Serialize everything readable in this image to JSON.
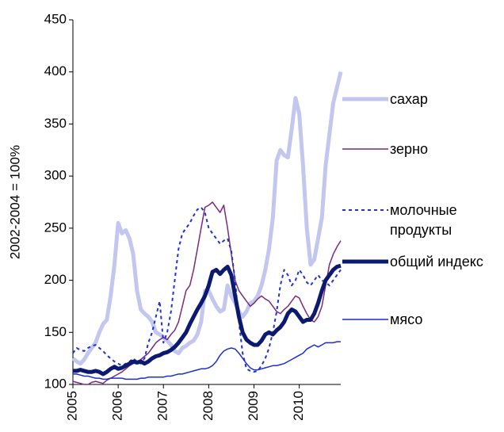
{
  "chart_data": {
    "type": "line",
    "y_label": "2002-2004 = 100%",
    "x": [
      2005,
      2005.083,
      2005.167,
      2005.25,
      2005.333,
      2005.417,
      2005.5,
      2005.583,
      2005.667,
      2005.75,
      2005.833,
      2005.917,
      2006,
      2006.083,
      2006.167,
      2006.25,
      2006.333,
      2006.417,
      2006.5,
      2006.583,
      2006.667,
      2006.75,
      2006.833,
      2006.917,
      2007,
      2007.083,
      2007.167,
      2007.25,
      2007.333,
      2007.417,
      2007.5,
      2007.583,
      2007.667,
      2007.75,
      2007.833,
      2007.917,
      2008,
      2008.083,
      2008.167,
      2008.25,
      2008.333,
      2008.417,
      2008.5,
      2008.583,
      2008.667,
      2008.75,
      2008.833,
      2008.917,
      2009,
      2009.083,
      2009.167,
      2009.25,
      2009.333,
      2009.417,
      2009.5,
      2009.583,
      2009.667,
      2009.75,
      2009.833,
      2009.917,
      2010,
      2010.083,
      2010.167,
      2010.25,
      2010.333,
      2010.417,
      2010.5,
      2010.583,
      2010.667,
      2010.75,
      2010.833,
      2010.917
    ],
    "series": [
      {
        "name": "сахар",
        "color": "#c3c6ee",
        "values": [
          125,
          122,
          120,
          124,
          130,
          135,
          140,
          150,
          158,
          162,
          185,
          215,
          255,
          245,
          248,
          240,
          225,
          190,
          172,
          168,
          165,
          160,
          150,
          148,
          145,
          142,
          138,
          132,
          130,
          135,
          137,
          140,
          142,
          148,
          160,
          190,
          190,
          182,
          175,
          170,
          172,
          195,
          185,
          178,
          170,
          165,
          170,
          178,
          180,
          185,
          195,
          210,
          230,
          260,
          315,
          325,
          320,
          318,
          345,
          375,
          360,
          310,
          250,
          215,
          220,
          240,
          260,
          310,
          340,
          370,
          385,
          400
        ]
      },
      {
        "name": "зерно",
        "color": "#7b2a7d",
        "values": [
          103,
          102,
          101,
          100,
          100,
          102,
          103,
          102,
          101,
          104,
          106,
          108,
          110,
          112,
          115,
          118,
          120,
          122,
          124,
          127,
          130,
          135,
          140,
          143,
          145,
          143,
          148,
          152,
          160,
          175,
          190,
          195,
          210,
          230,
          250,
          270,
          272,
          275,
          270,
          265,
          272,
          250,
          225,
          200,
          190,
          185,
          180,
          175,
          178,
          182,
          185,
          182,
          180,
          175,
          170,
          168,
          172,
          175,
          180,
          185,
          183,
          175,
          168,
          162,
          160,
          165,
          175,
          195,
          215,
          225,
          232,
          238
        ]
      },
      {
        "name": "молочные продукты",
        "color": "#2233cc",
        "dashed": true,
        "values": [
          130,
          135,
          133,
          132,
          135,
          137,
          138,
          135,
          132,
          128,
          125,
          122,
          120,
          118,
          120,
          122,
          125,
          122,
          120,
          125,
          140,
          150,
          165,
          180,
          140,
          150,
          170,
          200,
          230,
          245,
          250,
          255,
          262,
          268,
          270,
          265,
          250,
          245,
          240,
          235,
          238,
          240,
          228,
          200,
          160,
          130,
          115,
          113,
          112,
          113,
          118,
          125,
          135,
          150,
          170,
          195,
          210,
          205,
          195,
          200,
          210,
          205,
          198,
          195,
          200,
          205,
          200,
          198,
          195,
          200,
          205,
          210
        ]
      },
      {
        "name": "общий индекс",
        "color": "#0b1a70",
        "values": [
          113,
          113,
          114,
          113,
          112,
          112,
          113,
          112,
          110,
          112,
          115,
          117,
          115,
          116,
          118,
          120,
          122,
          121,
          122,
          120,
          122,
          125,
          127,
          128,
          130,
          131,
          133,
          136,
          140,
          145,
          150,
          158,
          165,
          172,
          178,
          185,
          195,
          208,
          210,
          206,
          210,
          213,
          205,
          185,
          165,
          150,
          143,
          140,
          138,
          138,
          142,
          148,
          150,
          148,
          152,
          155,
          160,
          168,
          172,
          170,
          165,
          160,
          162,
          162,
          168,
          178,
          190,
          200,
          205,
          210,
          213,
          214
        ]
      },
      {
        "name": "мясо",
        "color": "#1a2fd0",
        "values": [
          110,
          110,
          109,
          108,
          108,
          107,
          106,
          106,
          105,
          105,
          106,
          106,
          106,
          106,
          105,
          105,
          105,
          105,
          106,
          106,
          107,
          107,
          107,
          107,
          107,
          108,
          108,
          109,
          110,
          110,
          111,
          112,
          113,
          114,
          115,
          115,
          116,
          118,
          122,
          128,
          132,
          134,
          135,
          134,
          130,
          125,
          120,
          116,
          114,
          114,
          115,
          116,
          117,
          118,
          118,
          119,
          120,
          122,
          124,
          126,
          128,
          130,
          134,
          136,
          138,
          136,
          138,
          140,
          140,
          140,
          141,
          141
        ]
      }
    ],
    "xlim": [
      2005,
      2010.917
    ],
    "xticks": [
      2005,
      2006,
      2007,
      2008,
      2009,
      2010
    ],
    "ylim": [
      100,
      450
    ],
    "yticks": [
      100,
      150,
      200,
      250,
      300,
      350,
      400,
      450
    ],
    "grid": false,
    "legend": "right"
  }
}
